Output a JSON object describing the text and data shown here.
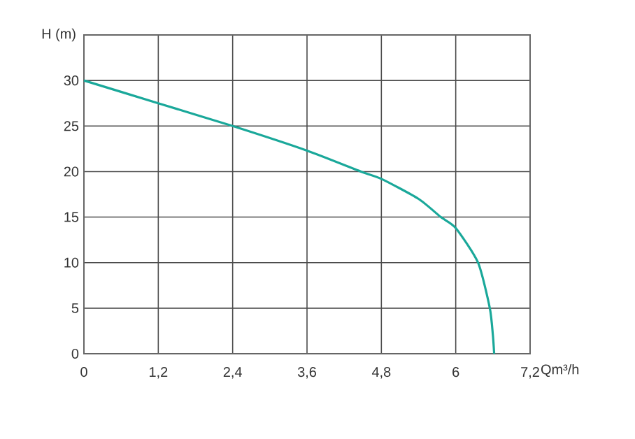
{
  "chart_data": {
    "type": "line",
    "xlabel": "Qm³/h",
    "ylabel": "H (m)",
    "x": [
      0,
      1.2,
      2.4,
      3.6,
      4.47,
      4.8,
      5.4,
      5.76,
      6,
      6.36,
      6.55,
      6.6,
      6.62
    ],
    "series": [
      {
        "color": "#1aa89a",
        "values": [
          30,
          27.5,
          25,
          22.3,
          20,
          19.2,
          17,
          15,
          13.8,
          10,
          5,
          2,
          0
        ]
      }
    ],
    "xlim": [
      0,
      7.2
    ],
    "ylim": [
      0,
      35
    ],
    "xticks": [
      0,
      {
        "value": 1.2,
        "label": "1,2"
      },
      {
        "value": 2.4,
        "label": "2,4"
      },
      {
        "value": 3.6,
        "label": "3,6"
      },
      {
        "value": 4.8,
        "label": "4,8"
      },
      6,
      {
        "value": 7.2,
        "label": "7,2"
      }
    ],
    "yticks": [
      0,
      5,
      10,
      15,
      20,
      25,
      30,
      {
        "value": 35,
        "label": null
      }
    ],
    "grid": true,
    "marker": "none",
    "line_style": "solid"
  }
}
